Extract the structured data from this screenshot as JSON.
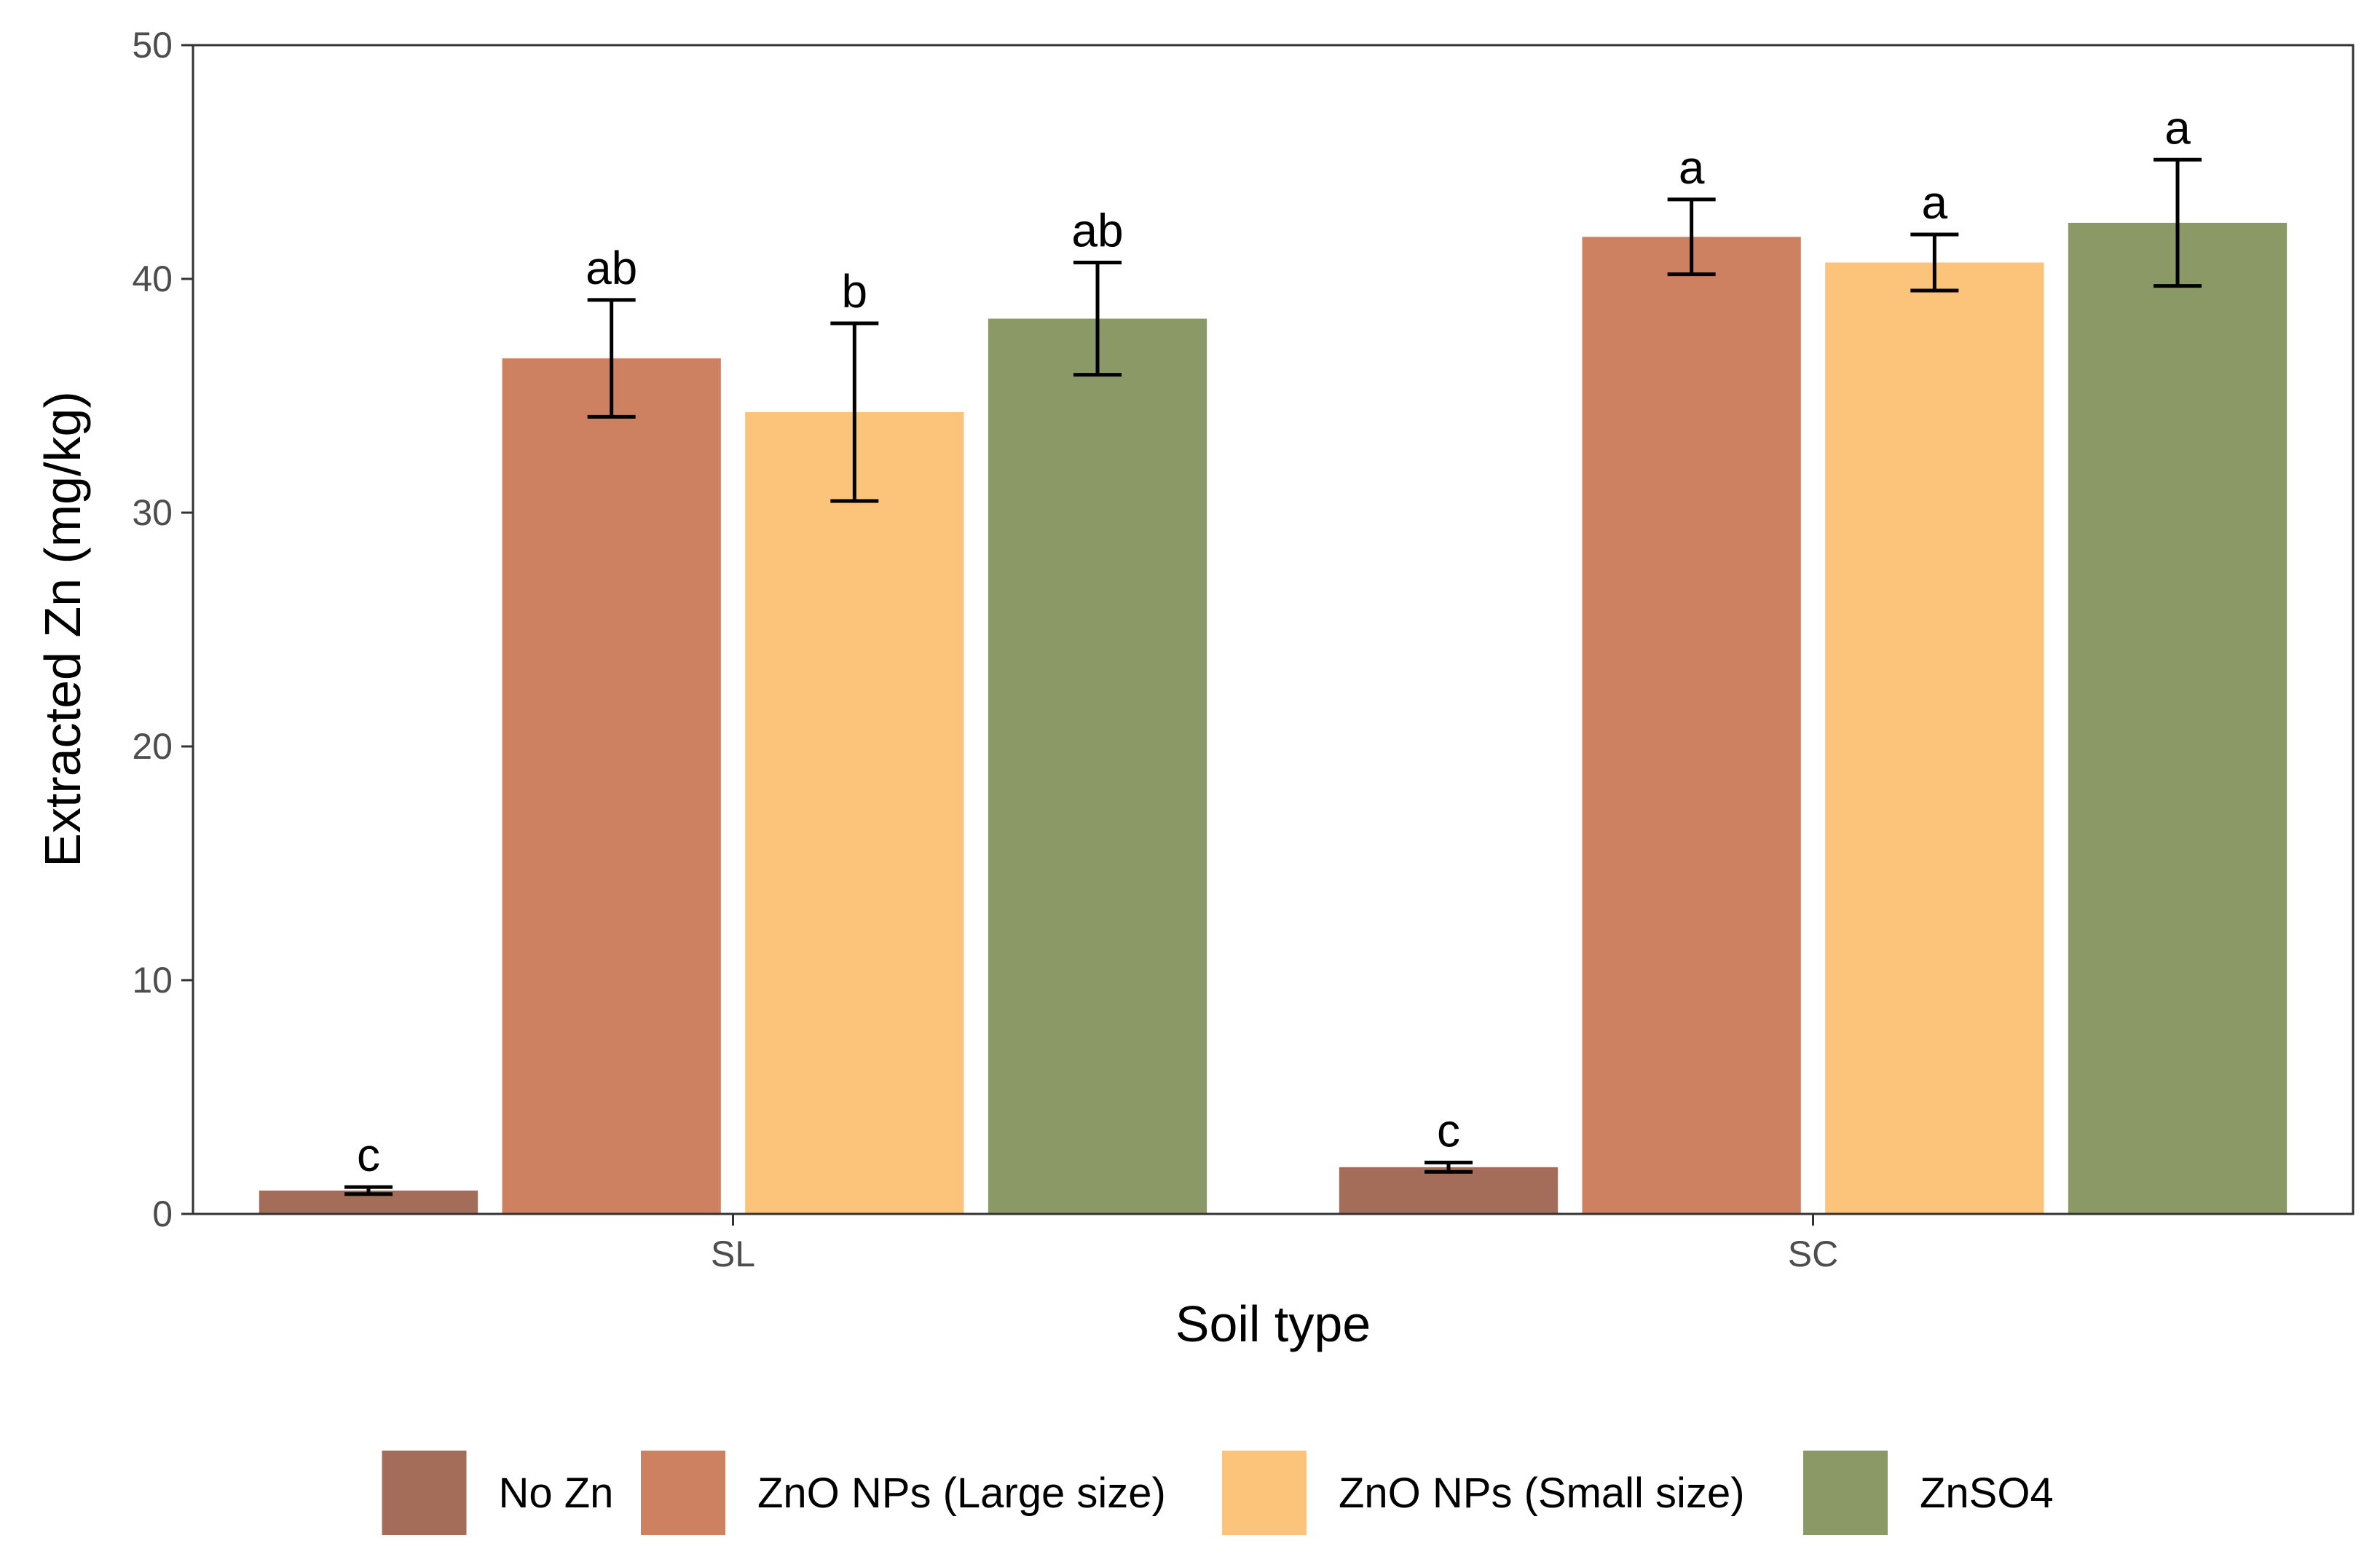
{
  "chart_data": {
    "type": "bar",
    "title": "",
    "xlabel": "Soil type",
    "ylabel": "Extracted Zn (mg/kg)",
    "ylim": [
      0,
      50
    ],
    "yticks": [
      "0",
      "10",
      "20",
      "30",
      "40",
      "50"
    ],
    "categories": [
      "SL",
      "SC"
    ],
    "series": [
      {
        "name": "No Zn",
        "color": "#A36D5A",
        "values": [
          1.0,
          2.0
        ],
        "errors": [
          0.15,
          0.2
        ],
        "letters": [
          "c",
          "c"
        ]
      },
      {
        "name": "ZnO NPs (Large size)",
        "color": "#CE8160",
        "values": [
          36.6,
          41.8
        ],
        "errors": [
          2.5,
          1.6
        ],
        "letters": [
          "ab",
          "a"
        ]
      },
      {
        "name": "ZnO NPs (Small size)",
        "color": "#FBC47A",
        "values": [
          34.3,
          40.7
        ],
        "errors": [
          3.8,
          1.2
        ],
        "letters": [
          "b",
          "a"
        ]
      },
      {
        "name": "ZnSO4",
        "color": "#8B9966",
        "values": [
          38.3,
          42.4
        ],
        "errors": [
          2.4,
          2.7
        ],
        "letters": [
          "ab",
          "a"
        ]
      }
    ],
    "legend_position": "bottom",
    "grid": false
  }
}
